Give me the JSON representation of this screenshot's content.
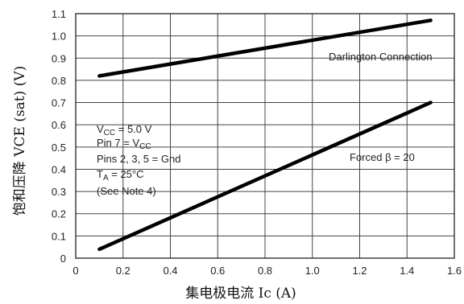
{
  "chart_data": {
    "type": "line",
    "xlabel": "集电极电流   Ic (A)",
    "ylabel": "饱和压降   VCE (sat)     (V)",
    "xlim": [
      0,
      1.6
    ],
    "ylim": [
      0,
      1.1
    ],
    "x_ticks": [
      "0",
      "0.2",
      "0.4",
      "0.6",
      "0.8",
      "1.0",
      "1.2",
      "1.4",
      "1.6"
    ],
    "y_ticks": [
      "0",
      "0.1",
      "0.2",
      "0.3",
      "0.4",
      "0.5",
      "0.6",
      "0.7",
      "0.8",
      "0.9",
      "1.0",
      "1.1"
    ],
    "grid": true,
    "series": [
      {
        "name": "Darlington Connection",
        "x": [
          0.1,
          1.5
        ],
        "y": [
          0.82,
          1.07
        ]
      },
      {
        "name": "Forced β = 20",
        "x": [
          0.1,
          1.5
        ],
        "y": [
          0.04,
          0.7
        ]
      }
    ],
    "conditions": [
      "VCC = 5.0 V",
      "Pin 7 = VCC",
      "Pins 2, 3, 5 = Gnd",
      "TA = 25°C",
      "(See Note 4)"
    ]
  }
}
